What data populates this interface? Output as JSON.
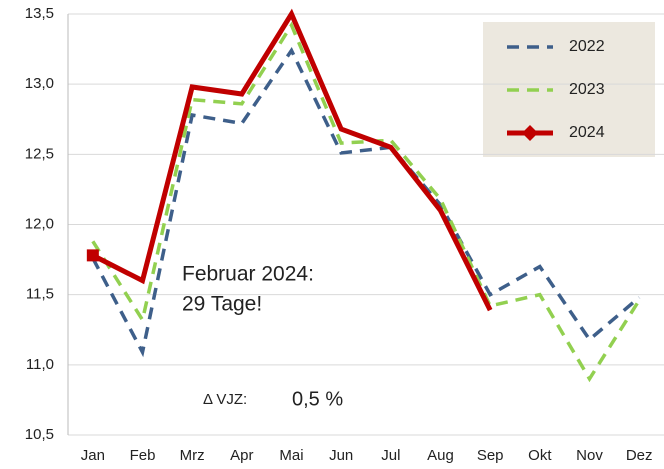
{
  "chart_data": {
    "type": "line",
    "categories": [
      "Jan",
      "Feb",
      "Mrz",
      "Apr",
      "Mai",
      "Jun",
      "Jul",
      "Aug",
      "Sep",
      "Okt",
      "Nov",
      "Dez"
    ],
    "series": [
      {
        "name": "2022",
        "color": "#3e5f8a",
        "dash": true,
        "values": [
          11.76,
          11.09,
          12.78,
          12.72,
          13.24,
          12.51,
          12.55,
          12.14,
          11.5,
          11.7,
          11.18,
          11.48
        ]
      },
      {
        "name": "2023",
        "color": "#92d050",
        "dash": true,
        "values": [
          11.88,
          11.32,
          12.89,
          12.86,
          13.42,
          12.58,
          12.6,
          12.18,
          11.42,
          11.5,
          10.9,
          11.46
        ]
      },
      {
        "name": "2024",
        "color": "#c00000",
        "dash": false,
        "marker": "diamond",
        "values": [
          11.78,
          11.6,
          12.98,
          12.93,
          13.5,
          12.68,
          12.55,
          12.1,
          11.39,
          null,
          null,
          null
        ]
      }
    ],
    "ylim": [
      10.5,
      13.5
    ],
    "yticks": [
      {
        "value": 10.5,
        "label": "10,5"
      },
      {
        "value": 11,
        "label": "11,0"
      },
      {
        "value": 11.5,
        "label": "11,5"
      },
      {
        "value": 12,
        "label": "12,0"
      },
      {
        "value": 12.5,
        "label": "12,5"
      },
      {
        "value": 13,
        "label": "13,0"
      },
      {
        "value": 13.5,
        "label": "13,5"
      }
    ],
    "grid": true,
    "legend": "top-right",
    "annotations": [
      "Februar 2024:",
      "29 Tage!",
      "Δ VJZ:",
      "0,5 %"
    ]
  }
}
